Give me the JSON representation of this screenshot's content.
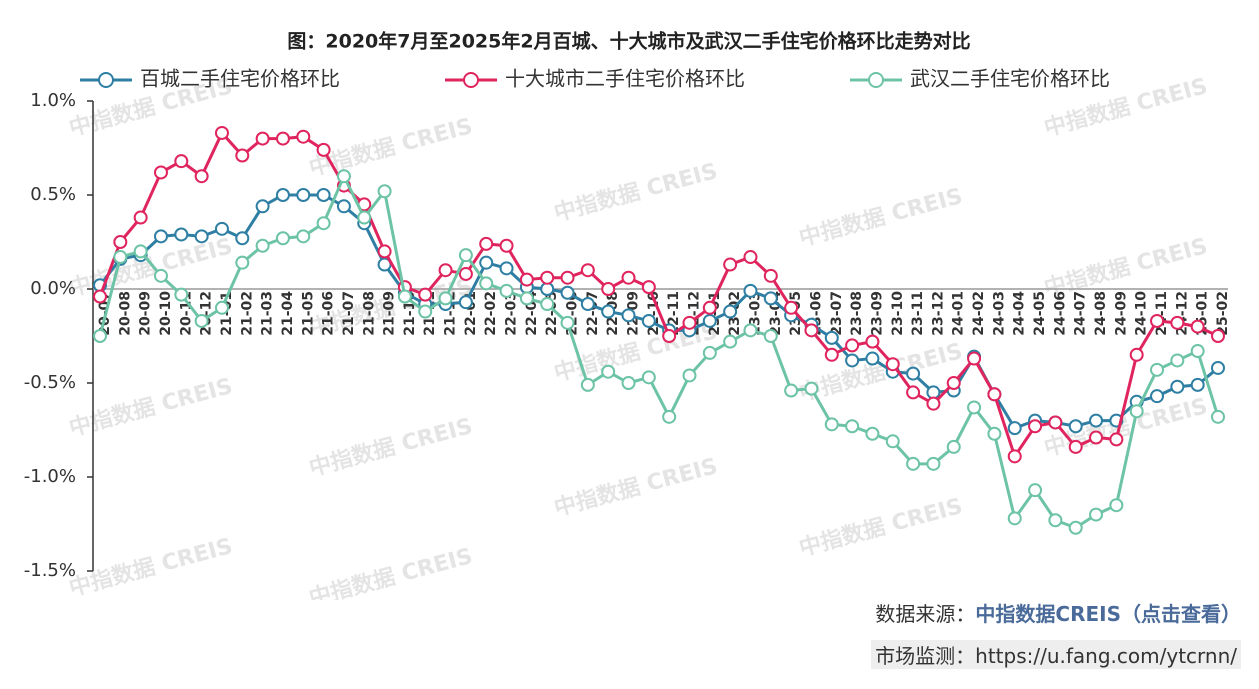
{
  "chart_data": {
    "type": "line",
    "title": "图：2020年7月至2025年2月百城、十大城市及武汉二手住宅价格环比走势对比",
    "watermark": "中指数据 CREIS",
    "categories": [
      "20-07",
      "20-08",
      "20-09",
      "20-10",
      "20-11",
      "20-12",
      "21-01",
      "21-02",
      "21-03",
      "21-04",
      "21-05",
      "21-06",
      "21-07",
      "21-08",
      "21-09",
      "21-10",
      "21-11",
      "21-12",
      "22-01",
      "22-02",
      "22-03",
      "22-04",
      "22-05",
      "22-06",
      "22-07",
      "22-08",
      "22-09",
      "22-10",
      "22-11",
      "22-12",
      "23-01",
      "23-02",
      "23-03",
      "23-04",
      "23-05",
      "23-06",
      "23-07",
      "23-08",
      "23-09",
      "23-10",
      "23-11",
      "23-12",
      "24-01",
      "24-02",
      "24-03",
      "24-04",
      "24-05",
      "24-06",
      "24-07",
      "24-08",
      "24-09",
      "24-10",
      "24-11",
      "24-12",
      "25-01",
      "25-02"
    ],
    "series": [
      {
        "name": "百城二手住宅价格环比",
        "color": "#2e7fa3",
        "values": [
          0.02,
          0.16,
          0.18,
          0.28,
          0.29,
          0.28,
          0.32,
          0.27,
          0.44,
          0.5,
          0.5,
          0.5,
          0.44,
          0.35,
          0.13,
          -0.02,
          -0.08,
          -0.08,
          -0.07,
          0.14,
          0.11,
          0.01,
          0.0,
          -0.02,
          -0.08,
          -0.12,
          -0.14,
          -0.17,
          -0.22,
          -0.22,
          -0.17,
          -0.12,
          -0.01,
          -0.05,
          -0.14,
          -0.19,
          -0.26,
          -0.38,
          -0.37,
          -0.44,
          -0.45,
          -0.55,
          -0.54,
          -0.36,
          -0.56,
          -0.74,
          -0.7,
          -0.71,
          -0.73,
          -0.7,
          -0.7,
          -0.6,
          -0.57,
          -0.52,
          -0.51,
          -0.42
        ]
      },
      {
        "name": "十大城市二手住宅价格环比",
        "color": "#e0245e",
        "values": [
          -0.04,
          0.25,
          0.38,
          0.62,
          0.68,
          0.6,
          0.83,
          0.71,
          0.8,
          0.8,
          0.81,
          0.74,
          0.55,
          0.45,
          0.2,
          0.01,
          -0.03,
          0.1,
          0.08,
          0.24,
          0.23,
          0.05,
          0.06,
          0.06,
          0.1,
          0.0,
          0.06,
          0.01,
          -0.25,
          -0.18,
          -0.1,
          0.13,
          0.17,
          0.07,
          -0.1,
          -0.22,
          -0.35,
          -0.3,
          -0.28,
          -0.4,
          -0.55,
          -0.61,
          -0.5,
          -0.37,
          -0.56,
          -0.89,
          -0.73,
          -0.71,
          -0.84,
          -0.79,
          -0.8,
          -0.35,
          -0.17,
          -0.18,
          -0.2,
          -0.25
        ]
      },
      {
        "name": "武汉二手住宅价格环比",
        "color": "#6cc3a6",
        "values": [
          -0.25,
          0.17,
          0.2,
          0.07,
          -0.03,
          -0.17,
          -0.1,
          0.14,
          0.23,
          0.27,
          0.28,
          0.35,
          0.6,
          0.38,
          0.52,
          -0.04,
          -0.12,
          -0.05,
          0.18,
          0.03,
          -0.01,
          -0.05,
          -0.08,
          -0.18,
          -0.51,
          -0.44,
          -0.5,
          -0.47,
          -0.68,
          -0.46,
          -0.34,
          -0.28,
          -0.22,
          -0.25,
          -0.54,
          -0.53,
          -0.72,
          -0.73,
          -0.77,
          -0.81,
          -0.93,
          -0.93,
          -0.84,
          -0.63,
          -0.77,
          -1.22,
          -1.07,
          -1.23,
          -1.27,
          -1.2,
          -1.15,
          -0.65,
          -0.43,
          -0.38,
          -0.33,
          -0.68
        ]
      }
    ],
    "ylim": [
      -1.5,
      1.0
    ],
    "yticks": [
      {
        "value": 1.0,
        "label": "1.0%"
      },
      {
        "value": 0.5,
        "label": "0.5%"
      },
      {
        "value": 0.0,
        "label": "0.0%"
      },
      {
        "value": -0.5,
        "label": "-0.5%"
      },
      {
        "value": -1.0,
        "label": "-1.0%"
      },
      {
        "value": -1.5,
        "label": "-1.5%"
      }
    ],
    "legend": "top"
  },
  "footer": {
    "source_label": "数据来源：",
    "source_link": "中指数据CREIS（点击查看）",
    "monitor": "市场监测：https://u.fang.com/ytcrnn/"
  }
}
